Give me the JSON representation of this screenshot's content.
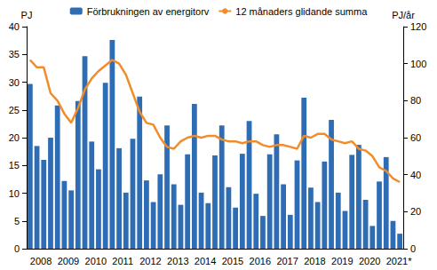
{
  "chart_data": {
    "type": "bar",
    "categories": [
      "2008",
      null,
      null,
      null,
      "2009",
      null,
      null,
      null,
      "2010",
      null,
      null,
      null,
      "2011",
      null,
      null,
      null,
      "2012",
      null,
      null,
      null,
      "2013",
      null,
      null,
      null,
      "2014",
      null,
      null,
      null,
      "2015",
      null,
      null,
      null,
      "2016",
      null,
      null,
      null,
      "2017",
      null,
      null,
      null,
      "2018",
      null,
      null,
      null,
      "2019",
      null,
      null,
      null,
      "2020",
      null,
      null,
      null,
      "2021*",
      null,
      null
    ],
    "series": [
      {
        "name": "Förbrukningen av energitorv",
        "type": "bar",
        "color": "#2e6db4",
        "values": [
          29.7,
          18.5,
          16.0,
          20.0,
          25.8,
          12.2,
          10.5,
          26.6,
          34.7,
          19.3,
          14.3,
          29.9,
          37.6,
          18.1,
          10.1,
          19.8,
          27.4,
          12.3,
          8.4,
          13.4,
          22.2,
          11.6,
          7.9,
          17.0,
          26.1,
          10.1,
          8.2,
          16.8,
          22.2,
          11.1,
          7.4,
          17.1,
          23.0,
          9.9,
          5.9,
          17.0,
          20.6,
          11.6,
          6.1,
          15.9,
          27.2,
          11.0,
          8.4,
          15.7,
          23.2,
          10.1,
          6.8,
          16.9,
          18.7,
          8.8,
          4.1,
          12.1,
          16.5,
          5.0,
          2.7
        ]
      },
      {
        "name": "12 månaders glidande summa",
        "type": "line",
        "axis": "y2",
        "color": "#f28c28",
        "values": [
          102,
          98,
          98,
          84,
          80,
          73,
          68,
          76,
          86,
          92,
          96,
          99,
          102,
          100,
          94,
          84,
          74,
          68,
          67,
          60,
          55,
          54,
          58,
          60,
          61,
          60,
          61,
          61,
          59,
          58,
          58,
          57,
          58,
          58,
          56,
          55,
          56,
          56,
          55,
          54,
          61,
          60,
          62,
          62,
          59,
          58,
          57,
          58,
          54,
          53,
          50,
          44,
          42,
          38,
          36
        ]
      }
    ],
    "y_label": "PJ",
    "y2_label": "PJ/år",
    "ylim": [
      0,
      40
    ],
    "yticks": [
      0,
      5,
      10,
      15,
      20,
      25,
      30,
      35,
      40
    ],
    "y2lim": [
      0,
      120
    ],
    "y2ticks": [
      0,
      20,
      40,
      60,
      80,
      100,
      120
    ],
    "legend": "top",
    "grid": false
  }
}
